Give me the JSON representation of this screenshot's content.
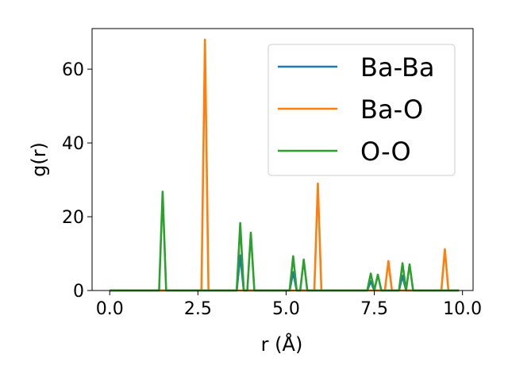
{
  "chart_data": {
    "type": "line",
    "title": "",
    "xlabel": "r (Å)",
    "ylabel": "g(r)",
    "xlim": [
      -0.5,
      10.3
    ],
    "ylim": [
      0,
      71
    ],
    "xticks": [
      0.0,
      2.5,
      5.0,
      7.5,
      10.0
    ],
    "xtick_labels": [
      "0.0",
      "2.5",
      "5.0",
      "7.5",
      "10.0"
    ],
    "yticks": [
      0,
      20,
      40,
      60
    ],
    "ytick_labels": [
      "0",
      "20",
      "40",
      "60"
    ],
    "grid": false,
    "legend_position": "top-right",
    "series": [
      {
        "name": "Ba-Ba",
        "color": "#1f77b4",
        "x": [
          0.0,
          3.6,
          3.7,
          3.8,
          5.1,
          5.2,
          5.3,
          7.3,
          7.4,
          7.5,
          8.2,
          8.3,
          8.4,
          9.9
        ],
        "y": [
          0,
          0,
          9.5,
          0,
          0,
          5,
          0,
          0,
          2.5,
          0,
          0,
          4,
          0,
          0
        ]
      },
      {
        "name": "Ba-O",
        "color": "#ff7f0e",
        "x": [
          0.0,
          2.6,
          2.7,
          2.8,
          5.8,
          5.9,
          6.0,
          7.8,
          7.9,
          8.0,
          9.4,
          9.5,
          9.6,
          9.9
        ],
        "y": [
          0,
          0,
          68,
          0,
          0,
          29,
          0,
          0,
          8,
          0,
          0,
          11.2,
          0,
          0
        ]
      },
      {
        "name": "O-O",
        "color": "#2ca02c",
        "x": [
          0.0,
          1.4,
          1.5,
          1.6,
          3.6,
          3.7,
          3.8,
          3.9,
          4.0,
          4.1,
          5.1,
          5.2,
          5.3,
          5.4,
          5.5,
          5.6,
          7.3,
          7.4,
          7.5,
          7.6,
          7.7,
          8.2,
          8.3,
          8.4,
          8.5,
          8.6,
          9.9
        ],
        "y": [
          0,
          0,
          26.8,
          0,
          0,
          18.3,
          0,
          0,
          15.7,
          0,
          0,
          9.3,
          0,
          0,
          8.4,
          0,
          0,
          4.6,
          0,
          4.3,
          0,
          0,
          7.4,
          0,
          7.1,
          0,
          0
        ]
      }
    ]
  }
}
